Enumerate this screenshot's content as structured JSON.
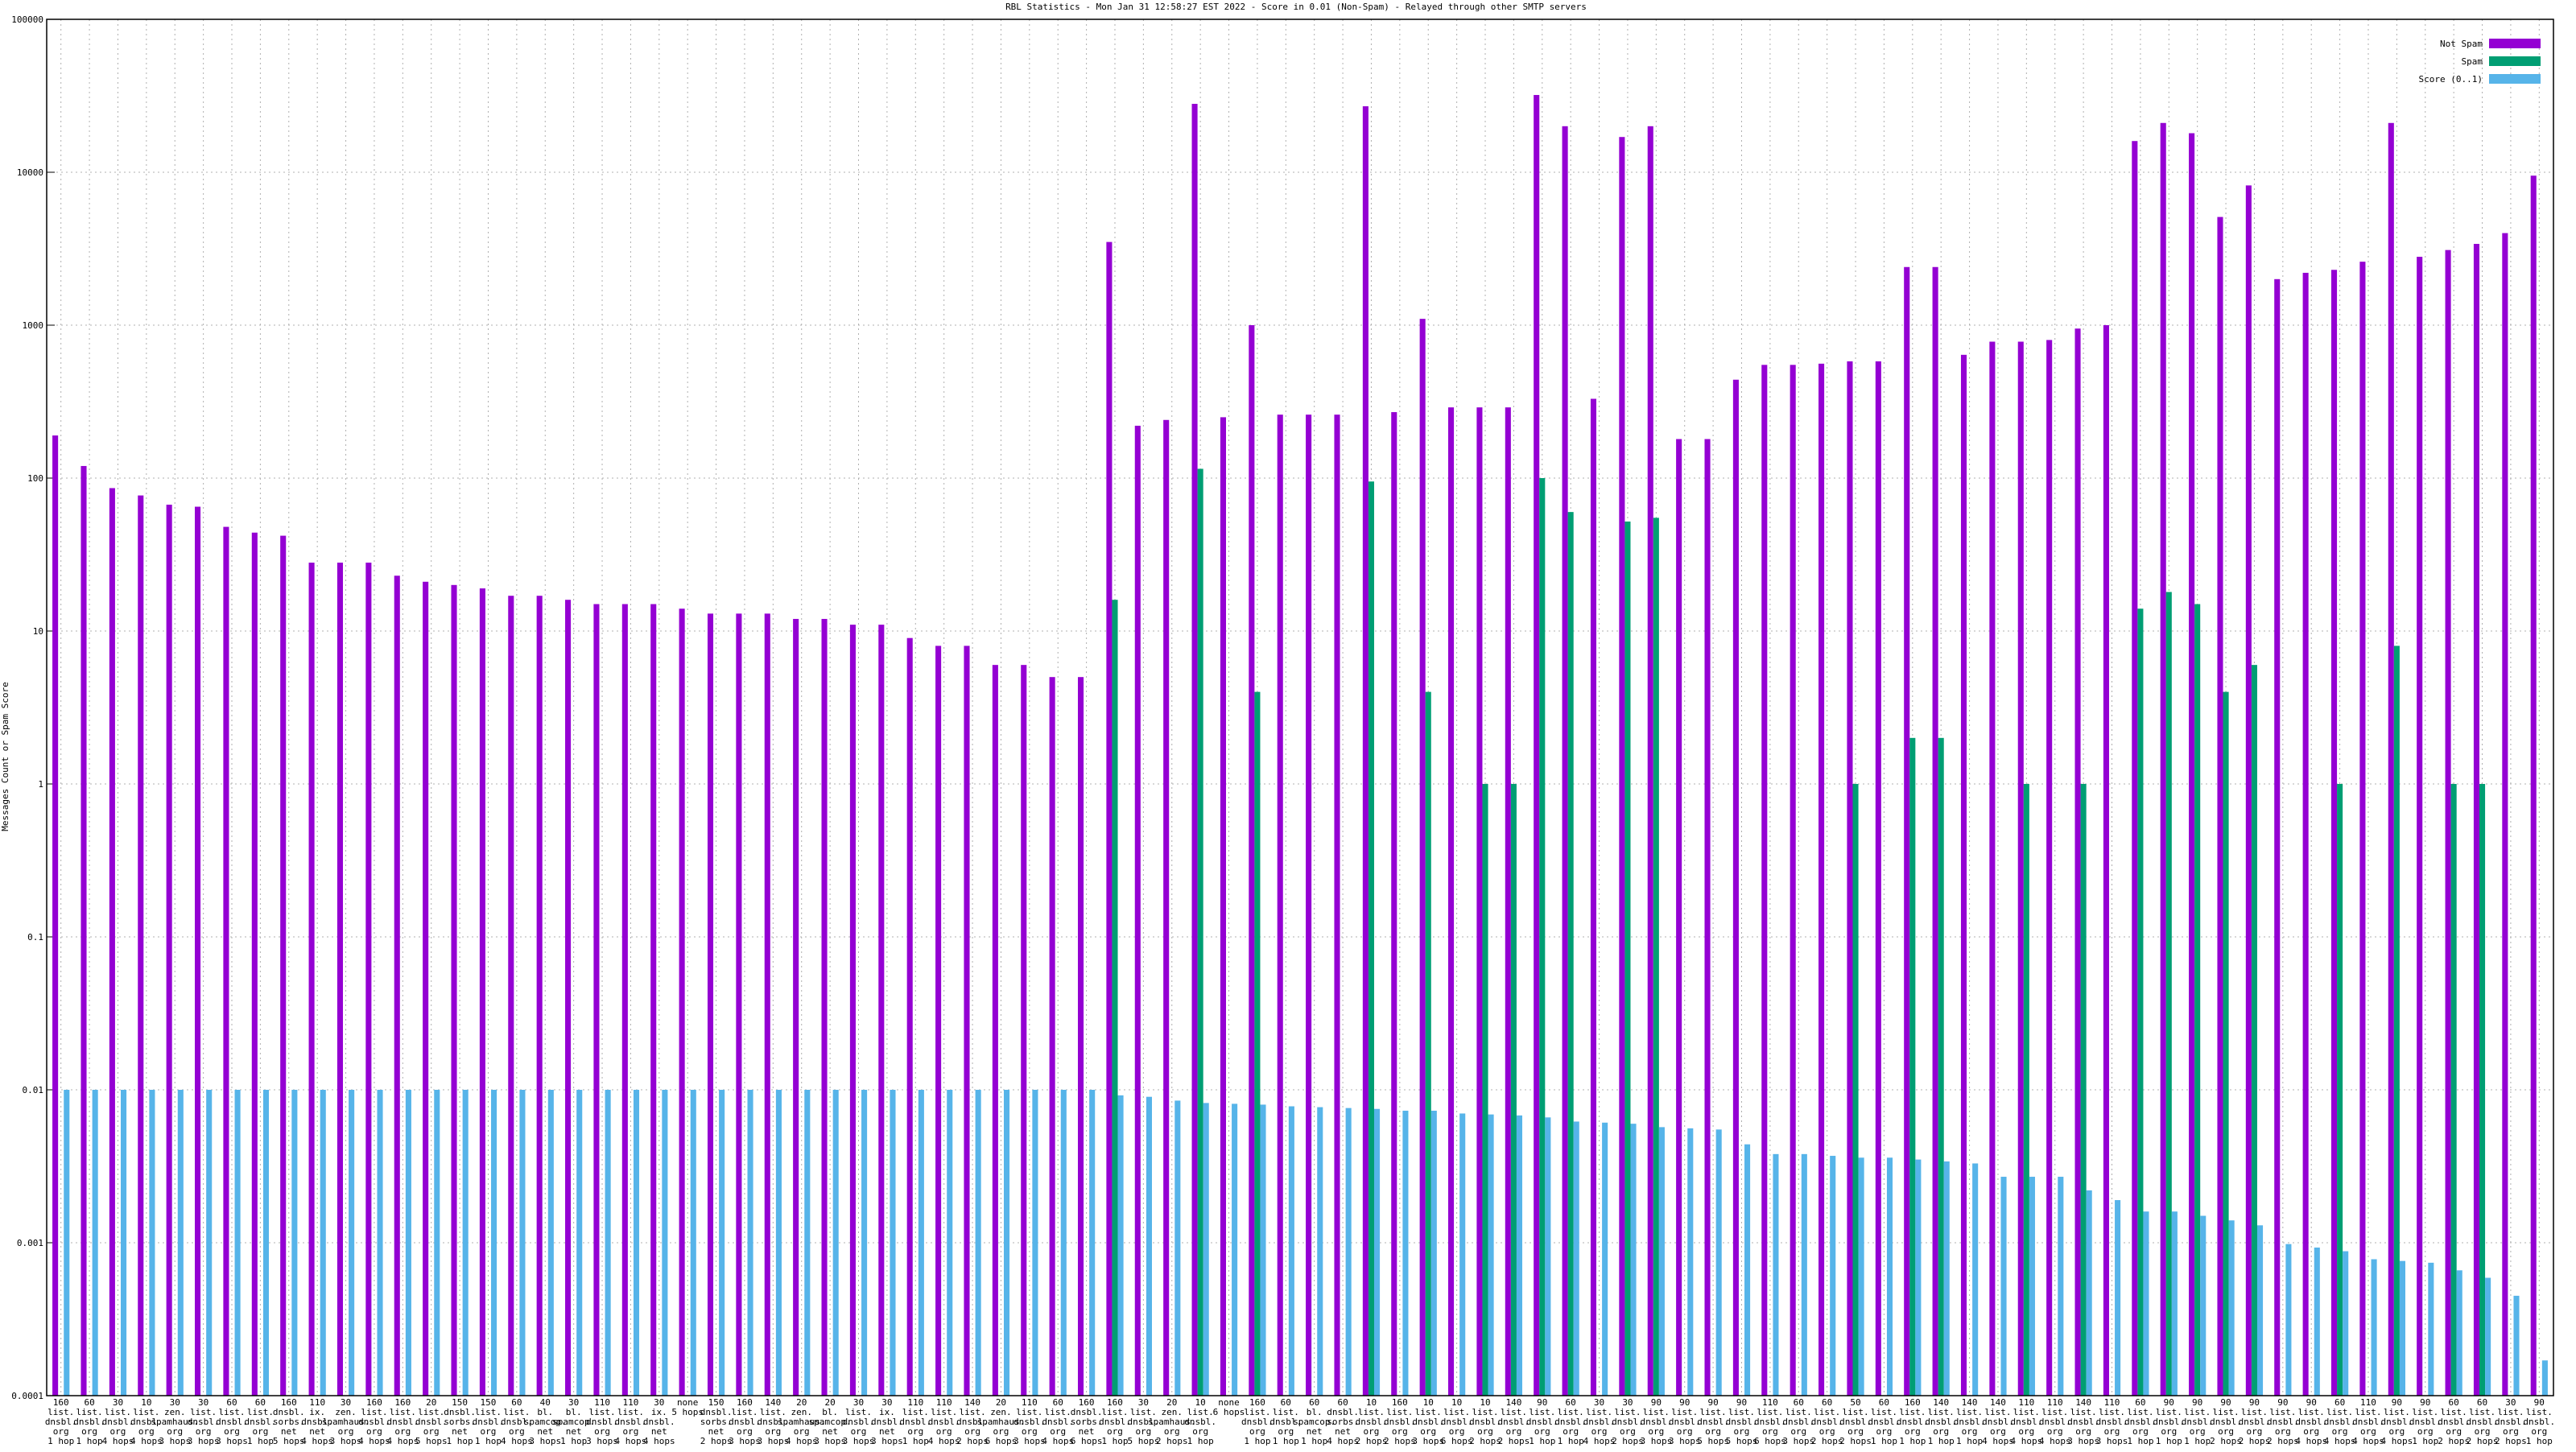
{
  "chart_data": {
    "type": "bar",
    "title": "RBL Statistics - Mon Jan 31 12:58:27 EST 2022 - Score in 0.01 (Non-Spam) - Relayed through other SMTP servers",
    "y_label": "Messages Count or Spam Score",
    "log_scale": "y",
    "grid": true,
    "legend_position": "top-right",
    "ylim": [
      0.0001,
      100000
    ],
    "yticks": [
      0.0001,
      0.001,
      0.01,
      0.1,
      1,
      10,
      100,
      1000,
      10000,
      100000
    ],
    "categories": [
      "160\nlist.\ndnsbl.\norg\n1 hop",
      "60\nlist.\ndnsbl.\norg\n1 hop",
      "30\nlist.\ndnsbl.\norg\n4 hops",
      "10\nlist.\ndnsbl.\norg\n4 hops",
      "30\nzen.\nspamhaus.\norg\n3 hops",
      "30\nlist.\ndnsbl.\norg\n3 hops",
      "60\nlist.\ndnsbl.\norg\n3 hops",
      "60\nlist.\ndnsbl.\norg\n1 hop",
      "160\ndnsbl.\nsorbs.\nnet\n5 hops",
      "110\nix.\ndnsbl.\nnet\n4 hops",
      "30\nzen.\nspamhaus.\norg\n3 hops",
      "160\nlist.\ndnsbl.\norg\n4 hops",
      "160\nlist.\ndnsbl.\norg\n4 hops",
      "20\nlist.\ndnsbl.\norg\n5 hops",
      "150\ndnsbl.\nsorbs.\nnet\n1 hop",
      "150\nlist.\ndnsbl.\norg\n1 hop",
      "60\nlist.\ndnsbl.\norg\n4 hops",
      "40\nbl.\nspamcop.\nnet\n3 hops",
      "30\nbl.\nspamcop.\nnet\n1 hop",
      "110\nlist.\ndnsbl.\norg\n3 hops",
      "110\nlist.\ndnsbl.\norg\n4 hops",
      "30\nix.\ndnsbl.\nnet\n4 hops",
      "none\n5 hops",
      "150\ndnsbl.\nsorbs.\nnet\n2 hops",
      "160\nlist.\ndnsbl.\norg\n3 hops",
      "140\nlist.\ndnsbl.\norg\n3 hops",
      "20\nzen.\nspamhaus.\norg\n4 hops",
      "20\nbl.\nspamcop.\nnet\n3 hops",
      "30\nlist.\ndnsbl.\norg\n3 hops",
      "30\nix.\ndnsbl.\nnet\n3 hops",
      "110\nlist.\ndnsbl.\norg\n1 hop",
      "110\nlist.\ndnsbl.\norg\n4 hops",
      "140\nlist.\ndnsbl.\norg\n2 hops",
      "20\nzen.\nspamhaus.\norg\n6 hops",
      "110\nlist.\ndnsbl.\norg\n3 hops",
      "60\nlist.\ndnsbl.\norg\n4 hops",
      "160\ndnsbl.\nsorbs.\nnet\n6 hops",
      "160\nlist.\ndnsbl.\norg\n1 hop",
      "30\nlist.\ndnsbl.\norg\n5 hops",
      "20\nzen.\nspamhaus.\norg\n2 hops",
      "10\nlist.\ndnsbl.\norg\n1 hop",
      "none\n6 hops",
      "160\nlist.\ndnsbl.\norg\n1 hop",
      "60\nlist.\ndnsbl.\norg\n1 hop",
      "60\nbl.\nspamcop.\nnet\n1 hop",
      "60\ndnsbl.\nsorbs.\nnet\n4 hops",
      "10\nlist.\ndnsbl.\norg\n2 hops",
      "160\nlist.\ndnsbl.\norg\n2 hops",
      "10\nlist.\ndnsbl.\norg\n3 hops",
      "10\nlist.\ndnsbl.\norg\n6 hops",
      "10\nlist.\ndnsbl.\norg\n2 hops",
      "140\nlist.\ndnsbl.\norg\n2 hops",
      "90\nlist.\ndnsbl.\norg\n1 hop",
      "60\nlist.\ndnsbl.\norg\n1 hop",
      "30\nlist.\ndnsbl.\norg\n4 hops",
      "30\nlist.\ndnsbl.\norg\n2 hops",
      "90\nlist.\ndnsbl.\norg\n3 hops",
      "90\nlist.\ndnsbl.\norg\n3 hops",
      "90\nlist.\ndnsbl.\norg\n5 hops",
      "90\nlist.\ndnsbl.\norg\n5 hops",
      "110\nlist.\ndnsbl.\norg\n6 hops",
      "60\nlist.\ndnsbl.\norg\n3 hops",
      "60\nlist.\ndnsbl.\norg\n2 hops",
      "50\nlist.\ndnsbl.\norg\n2 hops",
      "60\nlist.\ndnsbl.\norg\n1 hop",
      "160\nlist.\ndnsbl.\norg\n1 hop",
      "140\nlist.\ndnsbl.\norg\n1 hop",
      "140\nlist.\ndnsbl.\norg\n1 hop",
      "140\nlist.\ndnsbl.\norg\n4 hops",
      "110\nlist.\ndnsbl.\norg\n4 hops",
      "110\nlist.\ndnsbl.\norg\n4 hops",
      "140\nlist.\ndnsbl.\norg\n3 hops",
      "110\nlist.\ndnsbl.\norg\n3 hops",
      "60\nlist.\ndnsbl.\norg\n1 hop",
      "90\nlist.\ndnsbl.\norg\n1 hop",
      "90\nlist.\ndnsbl.\norg\n1 hop",
      "90\nlist.\ndnsbl.\norg\n2 hops",
      "90\nlist.\ndnsbl.\norg\n2 hops",
      "90\nlist.\ndnsbl.\norg\n2 hops",
      "90\nlist.\ndnsbl.\norg\n4 hops",
      "60\nlist.\ndnsbl.\norg\n4 hops",
      "110\nlist.\ndnsbl.\norg\n4 hops",
      "90\nlist.\ndnsbl.\norg\n4 hops",
      "90\nlist.\ndnsbl.\norg\n1 hop",
      "60\nlist.\ndnsbl.\norg\n2 hops",
      "60\nlist.\ndnsbl.\norg\n2 hops",
      "30\nlist.\ndnsbl.\norg\n2 hops",
      "90\nlist.\ndnsbl.\norg\n1 hop"
    ],
    "series": [
      {
        "name": "Not Spam",
        "color": "#9400d3",
        "values": [
          190,
          120,
          86,
          77,
          67,
          65,
          48,
          44,
          42,
          28,
          28,
          28,
          23,
          21,
          20,
          19,
          17,
          17,
          16,
          15,
          15,
          15,
          14,
          13,
          13,
          13,
          12,
          12,
          11,
          11,
          9,
          8,
          8,
          6,
          6,
          5,
          5,
          3500,
          220,
          240,
          28000,
          250,
          1000,
          260,
          260,
          260,
          27000,
          270,
          1100,
          290,
          290,
          290,
          32000,
          20000,
          330,
          17000,
          20000,
          180,
          180,
          440,
          550,
          550,
          560,
          580,
          580,
          2400,
          2400,
          640,
          780,
          780,
          800,
          950,
          1000,
          16000,
          21000,
          18000,
          5100,
          8200,
          2000,
          2200,
          2300,
          2600,
          21000,
          2800,
          3100,
          3400,
          4000,
          9500
        ]
      },
      {
        "name": "Spam",
        "color": "#009e73",
        "values": [
          null,
          null,
          null,
          null,
          null,
          null,
          null,
          null,
          null,
          null,
          null,
          null,
          null,
          null,
          null,
          null,
          null,
          null,
          null,
          null,
          null,
          null,
          null,
          null,
          null,
          null,
          null,
          null,
          null,
          null,
          null,
          null,
          null,
          null,
          null,
          null,
          null,
          16,
          null,
          null,
          115,
          null,
          4,
          null,
          null,
          null,
          95,
          null,
          4,
          null,
          1,
          1,
          100,
          60,
          null,
          52,
          55,
          null,
          null,
          null,
          null,
          null,
          null,
          1,
          null,
          2,
          2,
          null,
          null,
          1,
          null,
          1,
          null,
          14,
          18,
          15,
          4,
          6,
          null,
          null,
          1,
          null,
          8,
          null,
          1,
          1,
          null,
          null
        ]
      },
      {
        "name": "Score (0..1)",
        "color": "#56b4e9",
        "values": [
          0.01,
          0.01,
          0.01,
          0.01,
          0.01,
          0.01,
          0.01,
          0.01,
          0.01,
          0.01,
          0.01,
          0.01,
          0.01,
          0.01,
          0.01,
          0.01,
          0.01,
          0.01,
          0.01,
          0.01,
          0.01,
          0.01,
          0.01,
          0.01,
          0.01,
          0.01,
          0.01,
          0.01,
          0.01,
          0.01,
          0.01,
          0.01,
          0.01,
          0.01,
          0.01,
          0.01,
          0.01,
          0.0092,
          0.009,
          0.0085,
          0.0082,
          0.0081,
          0.008,
          0.0078,
          0.0077,
          0.0076,
          0.0075,
          0.0073,
          0.0073,
          0.007,
          0.0069,
          0.0068,
          0.0066,
          0.0062,
          0.0061,
          0.006,
          0.0057,
          0.0056,
          0.0055,
          0.0044,
          0.0038,
          0.0038,
          0.0037,
          0.0036,
          0.0036,
          0.0035,
          0.0034,
          0.0033,
          0.0027,
          0.0027,
          0.0027,
          0.0022,
          0.0019,
          0.0016,
          0.0016,
          0.0015,
          0.0014,
          0.0013,
          0.00098,
          0.00093,
          0.00088,
          0.00078,
          0.00076,
          0.00074,
          0.00066,
          0.00059,
          0.00045,
          0.00017
        ]
      }
    ]
  }
}
